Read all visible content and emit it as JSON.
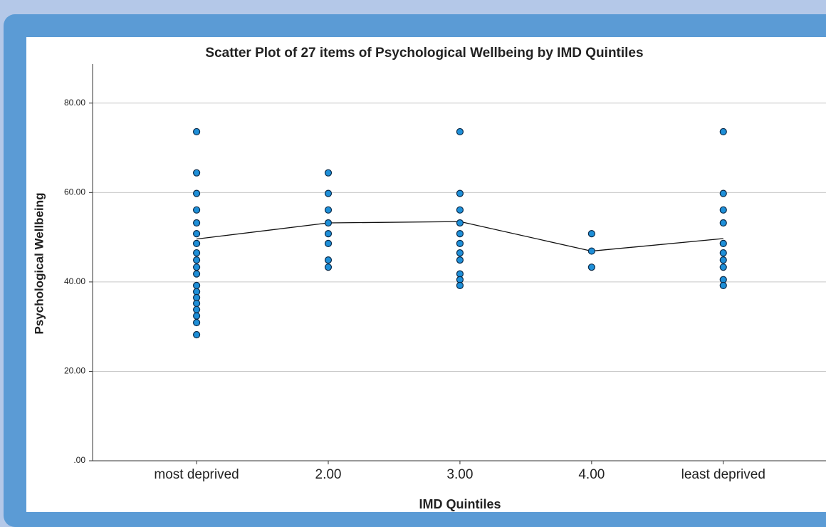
{
  "chart_data": {
    "type": "scatter",
    "title": "Scatter Plot of 27 items of Psychological Wellbeing by IMD Quintiles",
    "x_label": "IMD Quintiles",
    "y_label": "Psychological Wellbeing",
    "xlim": [
      0.21,
      5.78
    ],
    "xticks": [
      {
        "value": 1,
        "label": "most deprived"
      },
      {
        "value": 2,
        "label": "2.00"
      },
      {
        "value": 3,
        "label": "3.00"
      },
      {
        "value": 4,
        "label": "4.00"
      },
      {
        "value": 5,
        "label": "least deprived"
      }
    ],
    "ylim": [
      0,
      90
    ],
    "yticks": [
      {
        "value": 0,
        "label": ".00"
      },
      {
        "value": 20,
        "label": "20.00"
      },
      {
        "value": 40,
        "label": "40.00"
      },
      {
        "value": 60,
        "label": "60.00"
      },
      {
        "value": 80,
        "label": "80.00"
      }
    ],
    "grid": true,
    "color": "#1e8fd8",
    "line_color": "#111111",
    "points": {
      "x": [
        1,
        1,
        1,
        1,
        1,
        1,
        1,
        1,
        1,
        1,
        1,
        1,
        1,
        1,
        1,
        1,
        1,
        1,
        1,
        2,
        2,
        2,
        2,
        2,
        2,
        2,
        2,
        3,
        3,
        3,
        3,
        3,
        3,
        3,
        3,
        3,
        3,
        3,
        4,
        4,
        4,
        5,
        5,
        5,
        5,
        5,
        5,
        5,
        5,
        5,
        5
      ],
      "y": [
        73.6,
        64.4,
        59.8,
        56.1,
        53.2,
        50.8,
        48.6,
        46.5,
        44.9,
        43.3,
        41.8,
        39.2,
        37.8,
        36.5,
        35.2,
        33.8,
        32.4,
        30.9,
        28.2,
        64.4,
        59.8,
        56.1,
        53.2,
        50.8,
        48.6,
        44.9,
        43.3,
        73.6,
        59.8,
        56.1,
        53.2,
        50.8,
        48.6,
        46.5,
        44.9,
        41.8,
        40.5,
        39.2,
        50.8,
        46.9,
        43.3,
        73.6,
        59.8,
        56.1,
        53.2,
        48.6,
        46.5,
        44.9,
        43.3,
        40.5,
        39.2
      ]
    },
    "line": {
      "x": [
        1,
        2,
        3,
        4,
        5
      ],
      "y": [
        49.6,
        53.2,
        53.5,
        46.9,
        49.7
      ]
    }
  }
}
